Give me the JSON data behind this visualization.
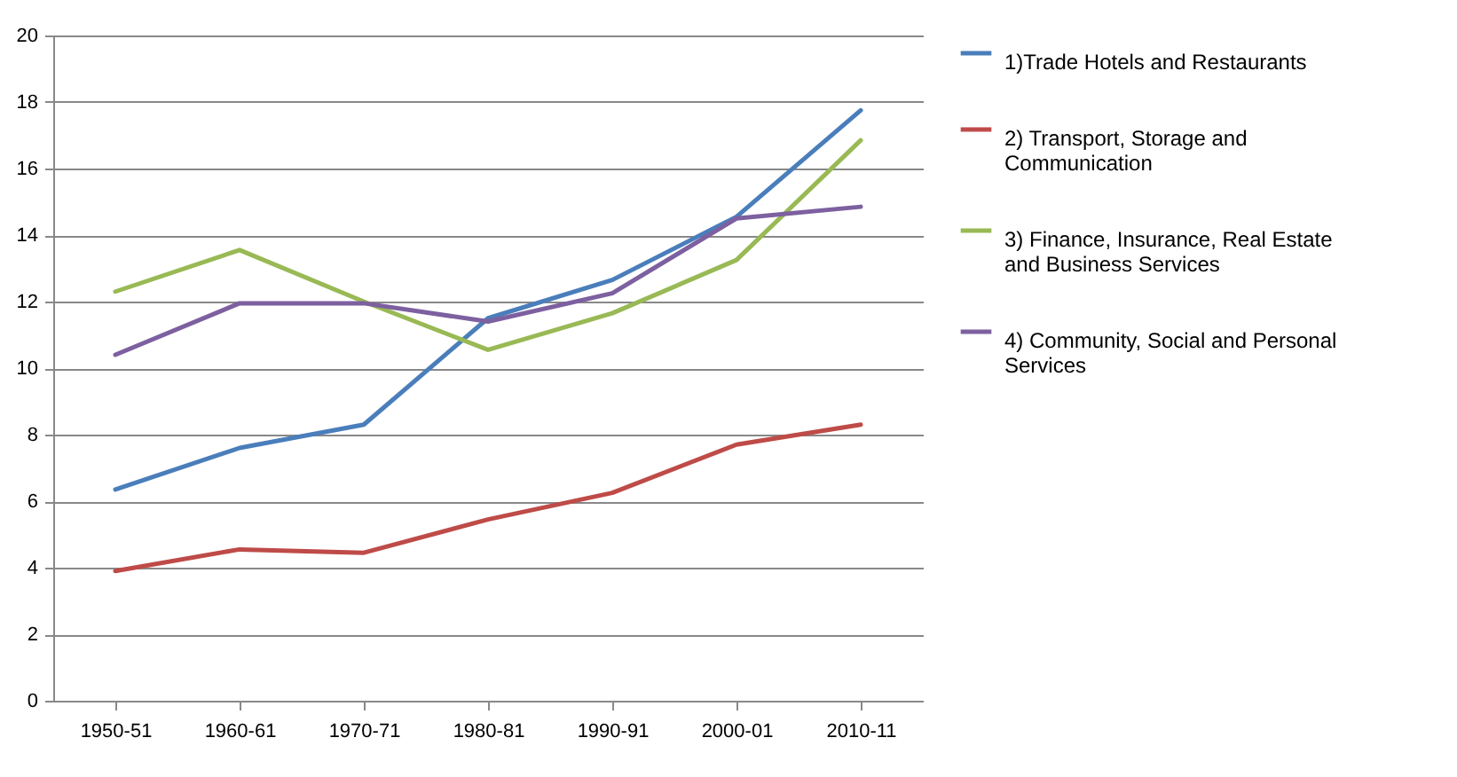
{
  "chart_data": {
    "type": "line",
    "categories": [
      "1950-51",
      "1960-61",
      "1970-71",
      "1980-81",
      "1990-91",
      "2000-01",
      "2010-11"
    ],
    "series": [
      {
        "name": "1)Trade Hotels and Restaurants",
        "color": "#4a7ebb",
        "values": [
          6.35,
          7.6,
          8.3,
          11.5,
          12.65,
          14.55,
          17.75
        ]
      },
      {
        "name": "2) Transport, Storage and Communication",
        "color": "#be4b48",
        "values": [
          3.9,
          4.55,
          4.45,
          5.45,
          6.25,
          7.7,
          8.3
        ]
      },
      {
        "name": "3) Finance, Insurance, Real Estate and Business Services",
        "color": "#98b954",
        "values": [
          12.3,
          13.55,
          12.0,
          10.55,
          11.65,
          13.25,
          16.85
        ]
      },
      {
        "name": "4) Community, Social and Personal Services",
        "color": "#7d60a0",
        "values": [
          10.4,
          11.95,
          11.95,
          11.4,
          12.25,
          14.5,
          14.85
        ]
      }
    ],
    "ylim": [
      0,
      20
    ],
    "yticks": [
      0,
      2,
      4,
      6,
      8,
      10,
      12,
      14,
      16,
      18,
      20
    ],
    "grid": "y",
    "legend": "right",
    "marker": "none",
    "line_style": "solid"
  }
}
